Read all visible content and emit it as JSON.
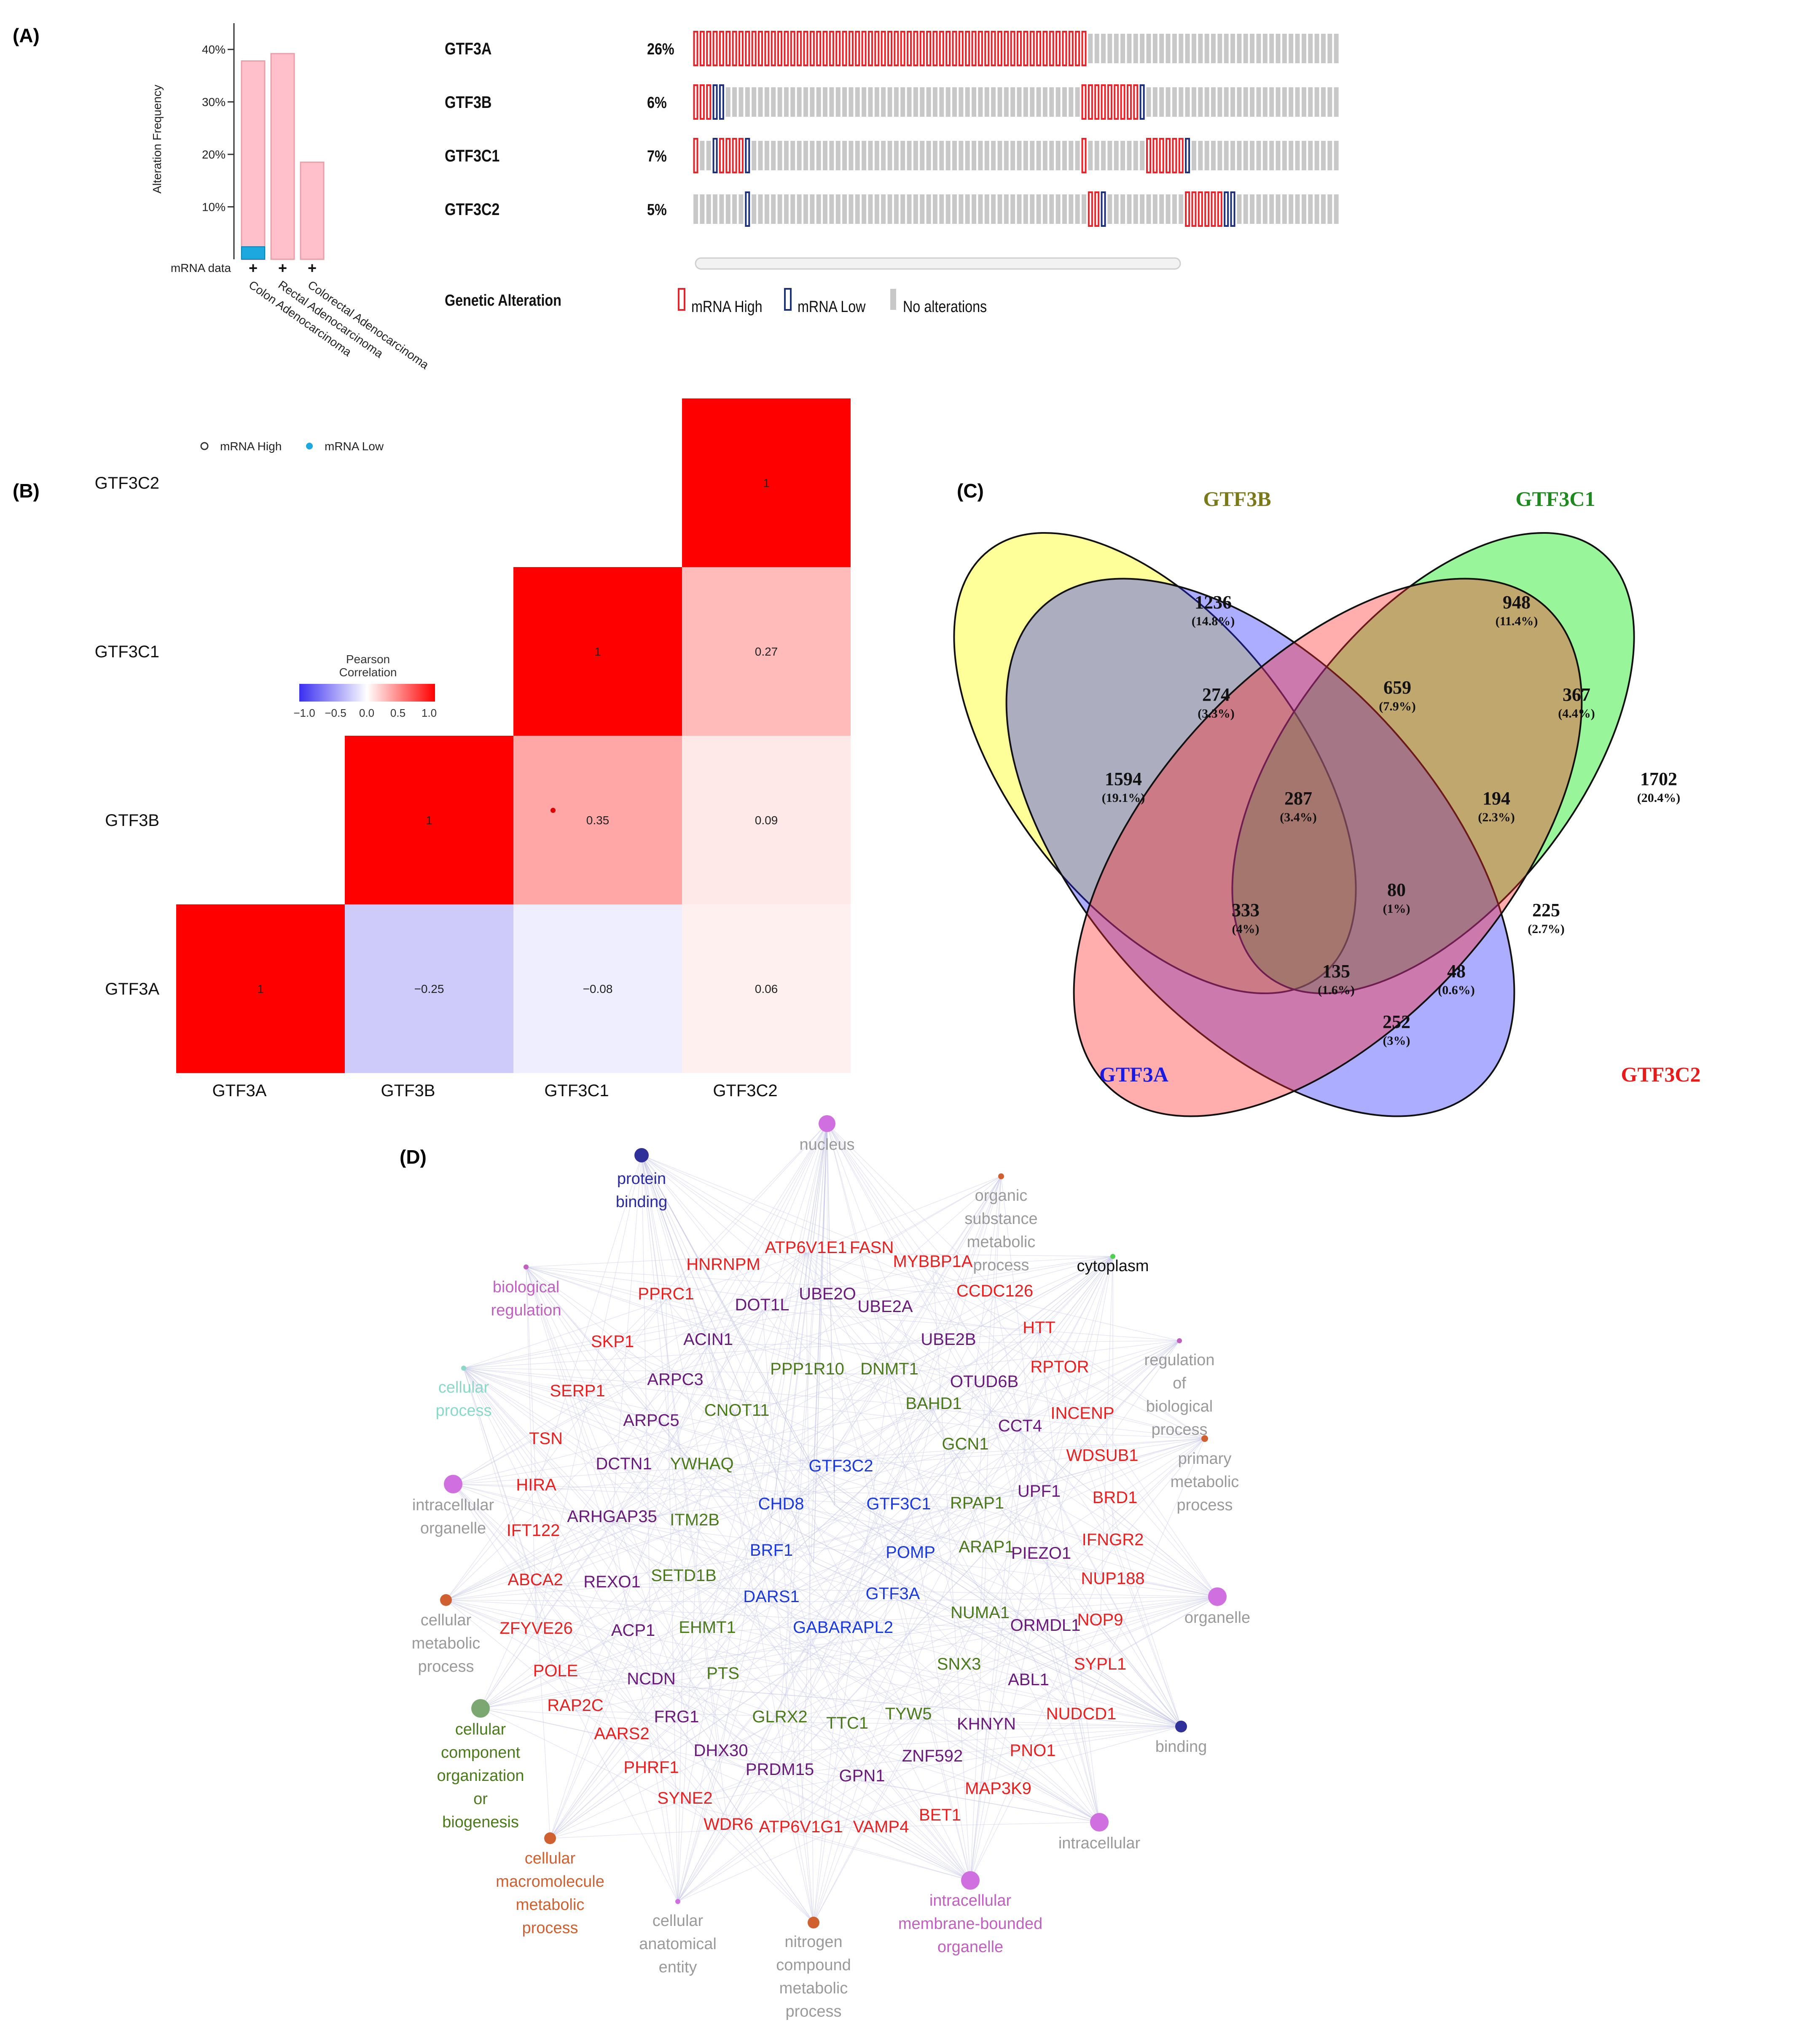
{
  "panels": {
    "a": "(A)",
    "b": "(B)",
    "c": "(C)",
    "d": "(D)"
  },
  "panel_a": {
    "freq_chart": {
      "type": "bar",
      "ylabel": "Alteration Frequency",
      "yticks": [
        "10%",
        "20%",
        "30%",
        "40%"
      ],
      "ylim": [
        0,
        45
      ],
      "categories": [
        "Colon Adenocarcinoma",
        "Rectal Adenocarcinoma",
        "Colorectal Adenocarcinoma"
      ],
      "series": [
        {
          "name": "mRNA High",
          "values": [
            37.8,
            39.2,
            18.5
          ]
        },
        {
          "name": "mRNA Low",
          "values": [
            2.4,
            0,
            0
          ]
        }
      ],
      "row_label": "mRNA data",
      "row_marks": [
        "+",
        "+",
        "+"
      ],
      "legend": {
        "high": "mRNA High",
        "low": "mRNA Low"
      },
      "colors": {
        "high": "#ffc0cb",
        "high_border": "#e8a0a8",
        "low": "#1ea8e0"
      }
    },
    "oncoprint": {
      "genes": [
        {
          "name": "GTF3A",
          "pct": "26%",
          "high": [
            [
              0,
              60
            ]
          ],
          "low": []
        },
        {
          "name": "GTF3B",
          "pct": "6%",
          "high": [
            [
              0,
              2
            ],
            [
              60,
              68
            ]
          ],
          "low": [
            [
              3,
              4
            ],
            [
              69,
              69
            ]
          ]
        },
        {
          "name": "GTF3C1",
          "pct": "7%",
          "high": [
            [
              0,
              0
            ],
            [
              3,
              8
            ],
            [
              60,
              60
            ],
            [
              70,
              75
            ]
          ],
          "low": [
            [
              3,
              3
            ],
            [
              8,
              8
            ],
            [
              76,
              76
            ]
          ]
        },
        {
          "name": "GTF3C2",
          "pct": "5%",
          "high": [
            [
              61,
              62
            ],
            [
              76,
              81
            ]
          ],
          "low": [
            [
              8,
              8
            ],
            [
              63,
              63
            ],
            [
              82,
              83
            ]
          ]
        }
      ],
      "n_samples": 100,
      "alteration_title": "Genetic Alteration",
      "legend": [
        "mRNA High",
        "mRNA Low",
        "No alterations"
      ],
      "colors": {
        "high": "#e8232a",
        "low": "#1c2f7a",
        "none": "#c8c8c8"
      }
    }
  },
  "panel_b": {
    "chart_data": {
      "type": "heatmap",
      "title": "Pearson Correlation",
      "genes": [
        "GTF3A",
        "GTF3B",
        "GTF3C1",
        "GTF3C2"
      ],
      "cells": [
        {
          "row": "GTF3A",
          "col": "GTF3A",
          "value": 1,
          "label": "1"
        },
        {
          "row": "GTF3B",
          "col": "GTF3B",
          "value": 1,
          "label": "1"
        },
        {
          "row": "GTF3C1",
          "col": "GTF3C1",
          "value": 1,
          "label": "1"
        },
        {
          "row": "GTF3C2",
          "col": "GTF3C2",
          "value": 1,
          "label": "1"
        },
        {
          "row": "GTF3A",
          "col": "GTF3B",
          "value": -0.25,
          "label": "−0.25"
        },
        {
          "row": "GTF3A",
          "col": "GTF3C1",
          "value": -0.08,
          "label": "−0.08"
        },
        {
          "row": "GTF3A",
          "col": "GTF3C2",
          "value": 0.06,
          "label": "0.06"
        },
        {
          "row": "GTF3B",
          "col": "GTF3C1",
          "value": 0.35,
          "label": "0.35"
        },
        {
          "row": "GTF3B",
          "col": "GTF3C2",
          "value": 0.09,
          "label": "0.09"
        },
        {
          "row": "GTF3C1",
          "col": "GTF3C2",
          "value": 0.27,
          "label": "0.27"
        }
      ],
      "colorbar_ticks": [
        "−1.0",
        "−0.5",
        "0.0",
        "0.5",
        "1.0"
      ],
      "colors": {
        "low": "#3b2ff0",
        "mid": "#ffffff",
        "high": "#ff0000"
      }
    }
  },
  "panel_c": {
    "sets": [
      {
        "name": "GTF3B",
        "color": "#7a7a1a"
      },
      {
        "name": "GTF3C1",
        "color": "#1e8a1e"
      },
      {
        "name": "GTF3A",
        "color": "#1a1ae0"
      },
      {
        "name": "GTF3C2",
        "color": "#e81a1a"
      }
    ],
    "regions": [
      {
        "count": "1594",
        "pct": "(19.1%)"
      },
      {
        "count": "1236",
        "pct": "(14.8%)"
      },
      {
        "count": "948",
        "pct": "(11.4%)"
      },
      {
        "count": "1702",
        "pct": "(20.4%)"
      },
      {
        "count": "274",
        "pct": "(3.3%)"
      },
      {
        "count": "659",
        "pct": "(7.9%)"
      },
      {
        "count": "367",
        "pct": "(4.4%)"
      },
      {
        "count": "287",
        "pct": "(3.4%)"
      },
      {
        "count": "194",
        "pct": "(2.3%)"
      },
      {
        "count": "333",
        "pct": "(4%)"
      },
      {
        "count": "80",
        "pct": "(1%)"
      },
      {
        "count": "225",
        "pct": "(2.7%)"
      },
      {
        "count": "135",
        "pct": "(1.6%)"
      },
      {
        "count": "48",
        "pct": "(0.6%)"
      },
      {
        "count": "252",
        "pct": "(3%)"
      }
    ]
  },
  "panel_d": {
    "colors": {
      "hub": "#2a2aa0",
      "red": "#e82020",
      "purple": "#6a1a7a",
      "green": "#4a7a1a",
      "blue": "#1a3adf",
      "grey": "#9a9a9a",
      "pink": "#c060c0",
      "teal": "#8ad8c8",
      "orange": "#d06030",
      "darkgreen": "#2a8a2a",
      "edge": "#c8c8e8"
    },
    "terms": [
      {
        "id": "nucleus",
        "lines": [
          "nucleus"
        ],
        "color": "grey",
        "dot": "#d070e0",
        "r": 20
      },
      {
        "id": "protein-binding",
        "lines": [
          "protein",
          "binding"
        ],
        "color": "hub",
        "dot": "#30309a",
        "r": 17
      },
      {
        "id": "organic-substance",
        "lines": [
          "organic",
          "substance",
          "metabolic",
          "process"
        ],
        "color": "grey",
        "dot": "#d06030",
        "r": 7
      },
      {
        "id": "cytoplasm",
        "lines": [
          "cytoplasm"
        ],
        "color": "black",
        "dot": "#50d050",
        "r": 6
      },
      {
        "id": "biological-regulation",
        "lines": [
          "biological",
          "regulation"
        ],
        "color": "pink",
        "dot": "#c060c0",
        "r": 6
      },
      {
        "id": "regulation-bio",
        "lines": [
          "regulation",
          "of",
          "biological",
          "process"
        ],
        "color": "grey",
        "dot": "#c060c0",
        "r": 6
      },
      {
        "id": "cellular-process",
        "lines": [
          "cellular",
          "process"
        ],
        "color": "teal",
        "dot": "#8ad8c8",
        "r": 6
      },
      {
        "id": "primary-metabolic",
        "lines": [
          "primary",
          "metabolic",
          "process"
        ],
        "color": "grey",
        "dot": "#d06030",
        "r": 8
      },
      {
        "id": "intracellular-organelle",
        "lines": [
          "intracellular",
          "organelle"
        ],
        "color": "grey",
        "dot": "#d070e0",
        "r": 22
      },
      {
        "id": "organelle",
        "lines": [
          "organelle"
        ],
        "color": "grey",
        "dot": "#d070e0",
        "r": 22
      },
      {
        "id": "cellular-metabolic",
        "lines": [
          "cellular",
          "metabolic",
          "process"
        ],
        "color": "grey",
        "dot": "#d06030",
        "r": 14
      },
      {
        "id": "cellular-component",
        "lines": [
          "cellular",
          "component",
          "organization",
          "or",
          "biogenesis"
        ],
        "color": "green",
        "dot": "#7aa870",
        "r": 22
      },
      {
        "id": "binding",
        "lines": [
          "binding"
        ],
        "color": "grey",
        "dot": "#30309a",
        "r": 14
      },
      {
        "id": "intracellular",
        "lines": [
          "intracellular"
        ],
        "color": "grey",
        "dot": "#d070e0",
        "r": 22
      },
      {
        "id": "cellular-macromolecule",
        "lines": [
          "cellular",
          "macromolecule",
          "metabolic",
          "process"
        ],
        "color": "orange",
        "dot": "#d06030",
        "r": 14
      },
      {
        "id": "intracellular-membrane",
        "lines": [
          "intracellular",
          "membrane-bounded",
          "organelle"
        ],
        "color": "pink",
        "dot": "#d070e0",
        "r": 22
      },
      {
        "id": "cellular-anatomical",
        "lines": [
          "cellular",
          "anatomical",
          "entity"
        ],
        "color": "grey",
        "dot": "#d070e0",
        "r": 6
      },
      {
        "id": "nitrogen-compound",
        "lines": [
          "nitrogen",
          "compound",
          "metabolic",
          "process"
        ],
        "color": "grey",
        "dot": "#d06030",
        "r": 14
      }
    ],
    "genes": [
      {
        "label": "ATP6V1E1",
        "color": "red"
      },
      {
        "label": "FASN",
        "color": "red"
      },
      {
        "label": "HNRNPM",
        "color": "red"
      },
      {
        "label": "MYBBP1A",
        "color": "red"
      },
      {
        "label": "PPRC1",
        "color": "red"
      },
      {
        "label": "DOT1L",
        "color": "purple"
      },
      {
        "label": "UBE2O",
        "color": "purple"
      },
      {
        "label": "UBE2A",
        "color": "purple"
      },
      {
        "label": "CCDC126",
        "color": "red"
      },
      {
        "label": "SKP1",
        "color": "red"
      },
      {
        "label": "ACIN1",
        "color": "purple"
      },
      {
        "label": "UBE2B",
        "color": "purple"
      },
      {
        "label": "HTT",
        "color": "red"
      },
      {
        "label": "ARPC3",
        "color": "purple"
      },
      {
        "label": "PPP1R10",
        "color": "green"
      },
      {
        "label": "DNMT1",
        "color": "green"
      },
      {
        "label": "OTUD6B",
        "color": "purple"
      },
      {
        "label": "RPTOR",
        "color": "red"
      },
      {
        "label": "SERP1",
        "color": "red"
      },
      {
        "label": "CNOT11",
        "color": "green"
      },
      {
        "label": "BAHD1",
        "color": "green"
      },
      {
        "label": "INCENP",
        "color": "red"
      },
      {
        "label": "ARPC5",
        "color": "purple"
      },
      {
        "label": "TSN",
        "color": "red"
      },
      {
        "label": "CCT4",
        "color": "purple"
      },
      {
        "label": "GCN1",
        "color": "green"
      },
      {
        "label": "WDSUB1",
        "color": "red"
      },
      {
        "label": "DCTN1",
        "color": "purple"
      },
      {
        "label": "YWHAQ",
        "color": "green"
      },
      {
        "label": "GTF3C2",
        "color": "blue"
      },
      {
        "label": "UPF1",
        "color": "purple"
      },
      {
        "label": "BRD1",
        "color": "red"
      },
      {
        "label": "HIRA",
        "color": "red"
      },
      {
        "label": "CHD8",
        "color": "blue"
      },
      {
        "label": "GTF3C1",
        "color": "blue"
      },
      {
        "label": "RPAP1",
        "color": "green"
      },
      {
        "label": "ARHGAP35",
        "color": "purple"
      },
      {
        "label": "ITM2B",
        "color": "green"
      },
      {
        "label": "IFT122",
        "color": "red"
      },
      {
        "label": "IFNGR2",
        "color": "red"
      },
      {
        "label": "BRF1",
        "color": "blue"
      },
      {
        "label": "POMP",
        "color": "blue"
      },
      {
        "label": "ARAP1",
        "color": "green"
      },
      {
        "label": "PIEZO1",
        "color": "purple"
      },
      {
        "label": "SETD1B",
        "color": "green"
      },
      {
        "label": "ABCA2",
        "color": "red"
      },
      {
        "label": "REXO1",
        "color": "purple"
      },
      {
        "label": "NUP188",
        "color": "red"
      },
      {
        "label": "DARS1",
        "color": "blue"
      },
      {
        "label": "GTF3A",
        "color": "blue"
      },
      {
        "label": "NUMA1",
        "color": "green"
      },
      {
        "label": "NOP9",
        "color": "red"
      },
      {
        "label": "ZFYVE26",
        "color": "red"
      },
      {
        "label": "ACP1",
        "color": "purple"
      },
      {
        "label": "EHMT1",
        "color": "green"
      },
      {
        "label": "GABARAPL2",
        "color": "blue"
      },
      {
        "label": "ORMDL1",
        "color": "purple"
      },
      {
        "label": "POLE",
        "color": "red"
      },
      {
        "label": "SNX3",
        "color": "green"
      },
      {
        "label": "SYPL1",
        "color": "red"
      },
      {
        "label": "NCDN",
        "color": "purple"
      },
      {
        "label": "PTS",
        "color": "green"
      },
      {
        "label": "ABL1",
        "color": "purple"
      },
      {
        "label": "RAP2C",
        "color": "red"
      },
      {
        "label": "NUDCD1",
        "color": "red"
      },
      {
        "label": "FRG1",
        "color": "purple"
      },
      {
        "label": "GLRX2",
        "color": "green"
      },
      {
        "label": "TTC1",
        "color": "green"
      },
      {
        "label": "TYW5",
        "color": "green"
      },
      {
        "label": "KHNYN",
        "color": "purple"
      },
      {
        "label": "AARS2",
        "color": "red"
      },
      {
        "label": "PNO1",
        "color": "red"
      },
      {
        "label": "DHX30",
        "color": "purple"
      },
      {
        "label": "ZNF592",
        "color": "purple"
      },
      {
        "label": "PHRF1",
        "color": "red"
      },
      {
        "label": "PRDM15",
        "color": "purple"
      },
      {
        "label": "GPN1",
        "color": "purple"
      },
      {
        "label": "MAP3K9",
        "color": "red"
      },
      {
        "label": "SYNE2",
        "color": "red"
      },
      {
        "label": "BET1",
        "color": "red"
      },
      {
        "label": "WDR6",
        "color": "red"
      },
      {
        "label": "ATP6V1G1",
        "color": "red"
      },
      {
        "label": "VAMP4",
        "color": "red"
      }
    ]
  }
}
